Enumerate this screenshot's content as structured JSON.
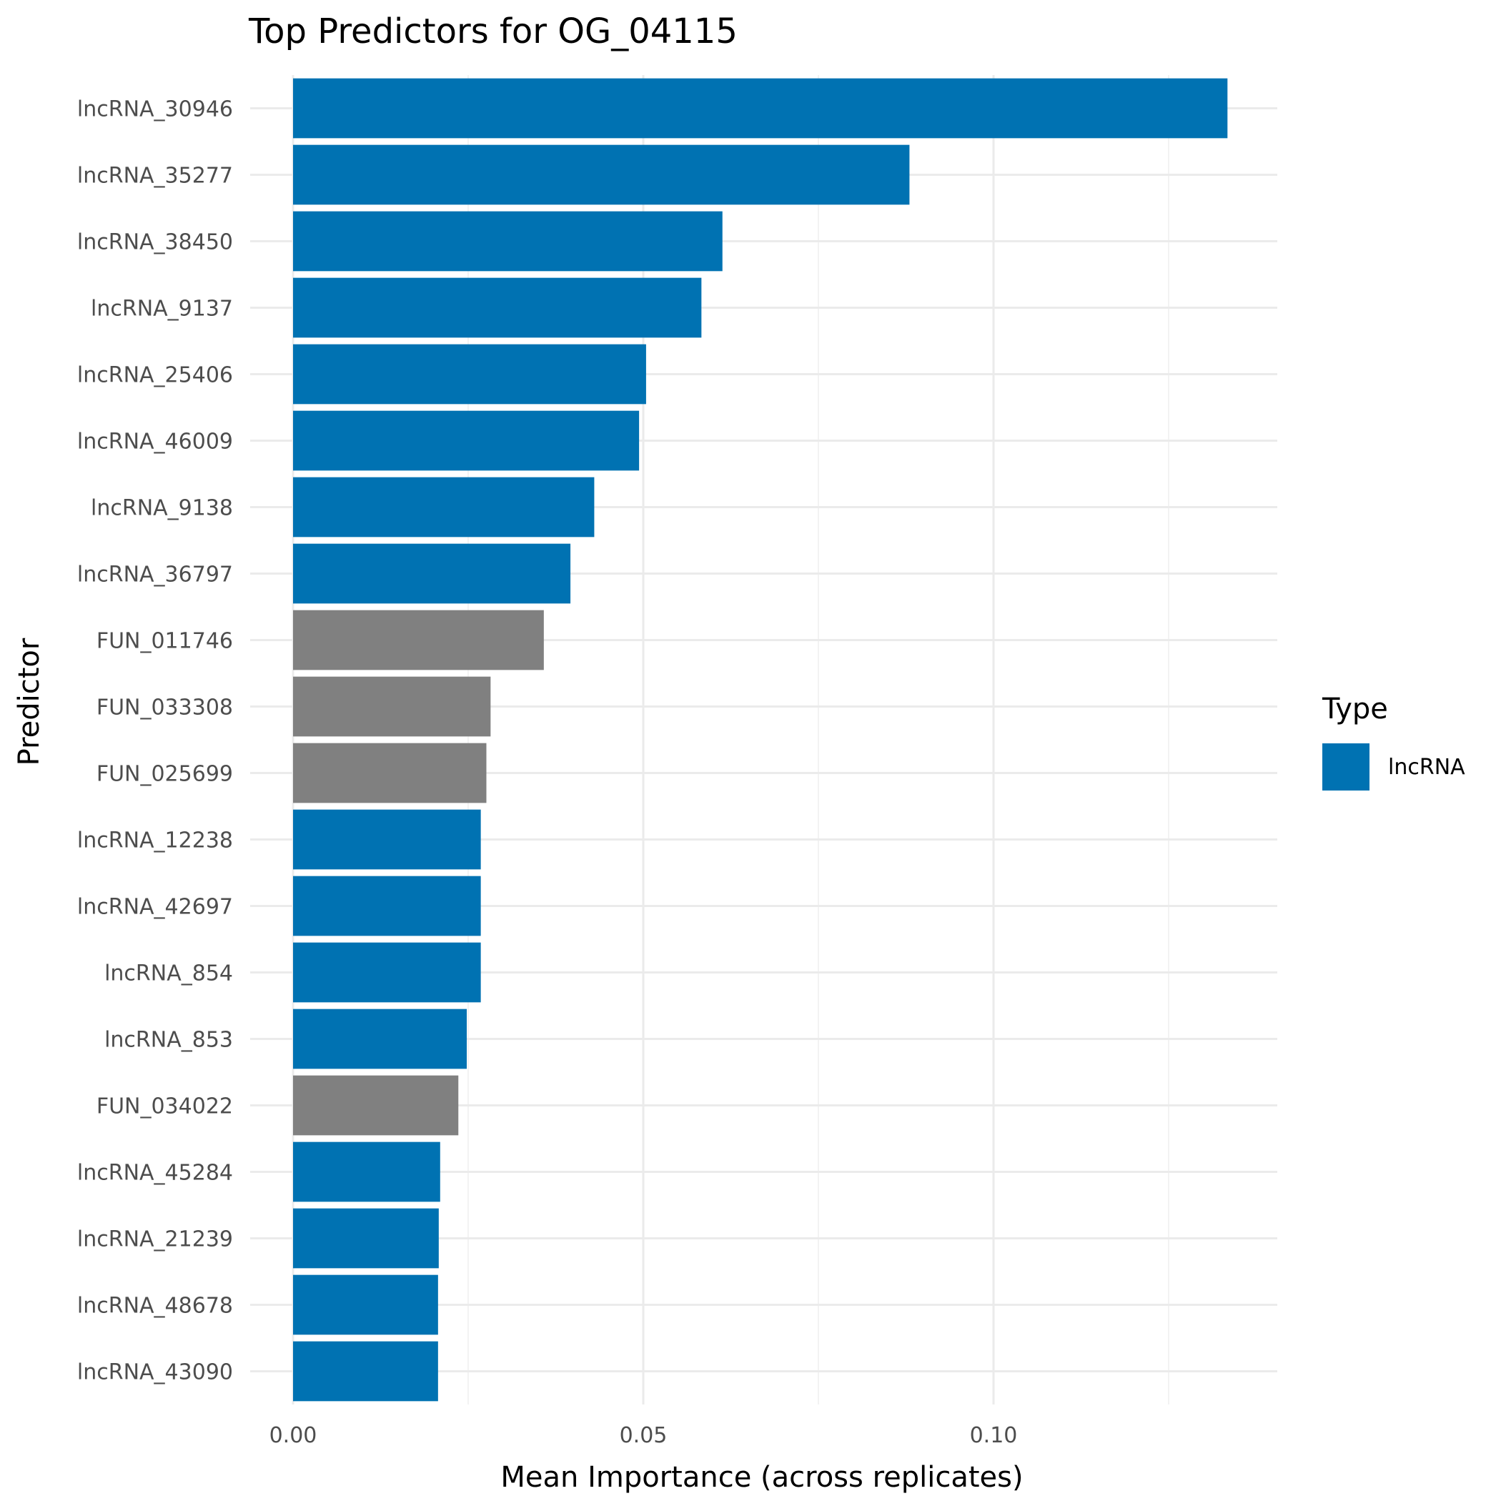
{
  "colors": {
    "lncRNA": "#0072b2",
    "other": "#808080",
    "grid_major": "#ebebeb",
    "grid_minor": "#f3f3f3"
  },
  "chart_data": {
    "type": "bar",
    "orientation": "horizontal",
    "title": "Top Predictors for OG_04115",
    "xlabel": "Mean Importance (across replicates)",
    "ylabel": "Predictor",
    "xlim": [
      0,
      0.14
    ],
    "xticks": [
      0.0,
      0.05,
      0.1
    ],
    "xtick_labels": [
      "0.00",
      "0.05",
      "0.10"
    ],
    "grid": true,
    "legend": {
      "title": "Type",
      "position": "right",
      "entries": [
        {
          "label": "lncRNA",
          "color": "#0072b2"
        }
      ]
    },
    "categories": [
      "lncRNA_30946",
      "lncRNA_35277",
      "lncRNA_38450",
      "lncRNA_9137",
      "lncRNA_25406",
      "lncRNA_46009",
      "lncRNA_9138",
      "lncRNA_36797",
      "FUN_011746",
      "FUN_033308",
      "FUN_025699",
      "lncRNA_12238",
      "lncRNA_42697",
      "lncRNA_854",
      "lncRNA_853",
      "FUN_034022",
      "lncRNA_45284",
      "lncRNA_21239",
      "lncRNA_48678",
      "lncRNA_43090"
    ],
    "values": [
      0.1334,
      0.088,
      0.0613,
      0.0583,
      0.0504,
      0.0494,
      0.043,
      0.0396,
      0.0358,
      0.0282,
      0.0276,
      0.0268,
      0.0268,
      0.0268,
      0.0248,
      0.0236,
      0.021,
      0.0208,
      0.0207,
      0.0207
    ],
    "types": [
      "lncRNA",
      "lncRNA",
      "lncRNA",
      "lncRNA",
      "lncRNA",
      "lncRNA",
      "lncRNA",
      "lncRNA",
      "other",
      "other",
      "other",
      "lncRNA",
      "lncRNA",
      "lncRNA",
      "lncRNA",
      "other",
      "lncRNA",
      "lncRNA",
      "lncRNA",
      "lncRNA"
    ]
  }
}
